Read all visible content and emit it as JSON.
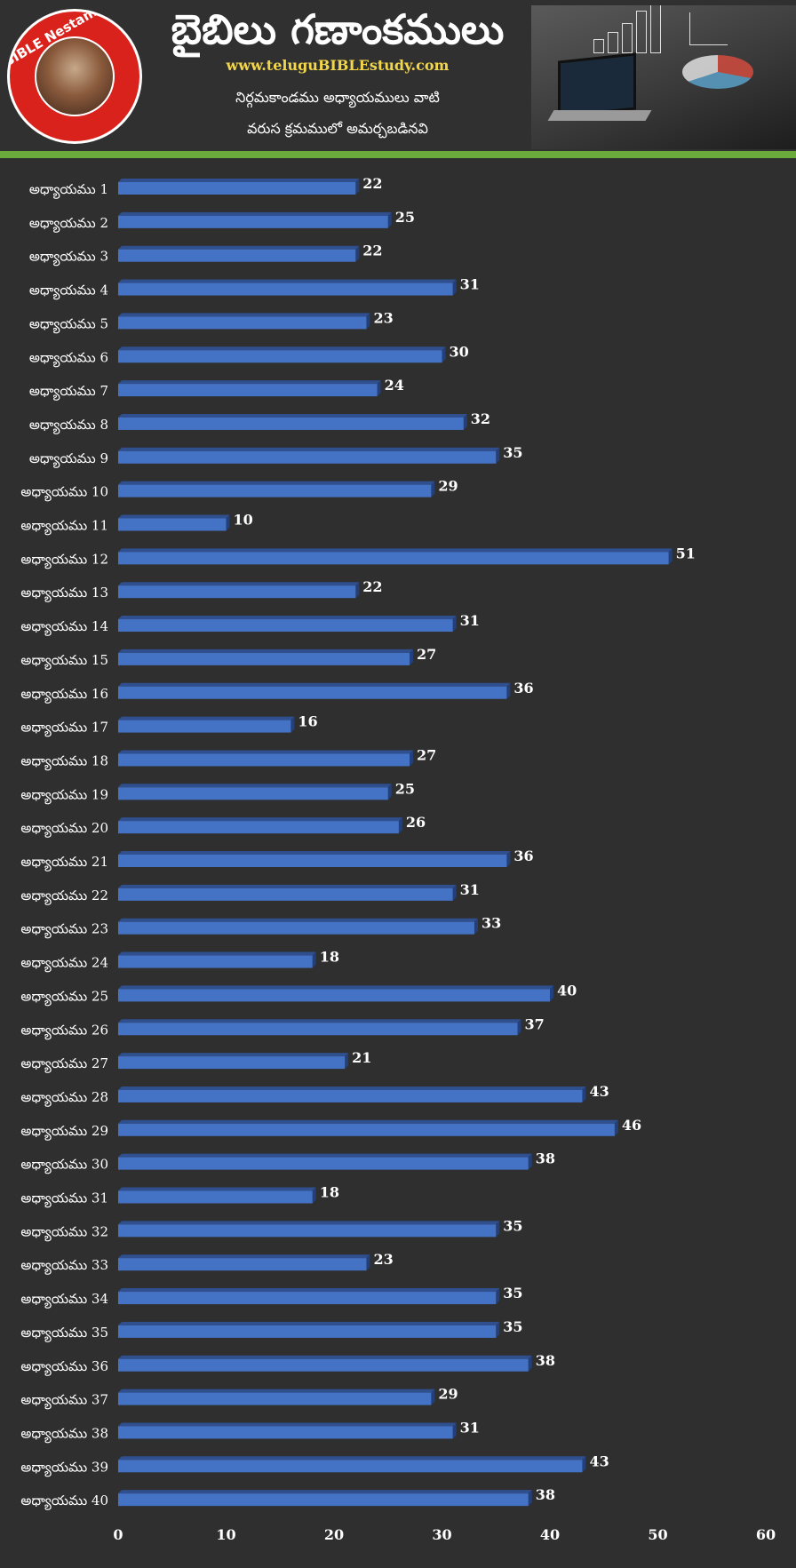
{
  "header": {
    "title": "బైబిలు గణాంకములు",
    "website": "www.teluguBIBLEstudy.com",
    "subtitle_line1": "నిర్గమకాండము అధ్యాయములు వాటి",
    "subtitle_line2": "వరుస క్రమములో అమర్చబడినవి",
    "logo_text": "BIBLE Nestam",
    "brand_green": "#6aab3c",
    "website_color": "#f2d64b"
  },
  "chart_data": {
    "type": "bar",
    "orientation": "horizontal",
    "categories": [
      "అధ్యాయము 1",
      "అధ్యాయము 2",
      "అధ్యాయము 3",
      "అధ్యాయము 4",
      "అధ్యాయము 5",
      "అధ్యాయము 6",
      "అధ్యాయము 7",
      "అధ్యాయము 8",
      "అధ్యాయము 9",
      "అధ్యాయము 10",
      "అధ్యాయము 11",
      "అధ్యాయము 12",
      "అధ్యాయము 13",
      "అధ్యాయము 14",
      "అధ్యాయము 15",
      "అధ్యాయము 16",
      "అధ్యాయము 17",
      "అధ్యాయము 18",
      "అధ్యాయము 19",
      "అధ్యాయము 20",
      "అధ్యాయము 21",
      "అధ్యాయము 22",
      "అధ్యాయము 23",
      "అధ్యాయము 24",
      "అధ్యాయము 25",
      "అధ్యాయము 26",
      "అధ్యాయము 27",
      "అధ్యాయము 28",
      "అధ్యాయము 29",
      "అధ్యాయము 30",
      "అధ్యాయము 31",
      "అధ్యాయము 32",
      "అధ్యాయము 33",
      "అధ్యాయము 34",
      "అధ్యాయము 35",
      "అధ్యాయము 36",
      "అధ్యాయము 37",
      "అధ్యాయము 38",
      "అధ్యాయము 39",
      "అధ్యాయము 40"
    ],
    "values": [
      22,
      25,
      22,
      31,
      23,
      30,
      24,
      32,
      35,
      29,
      10,
      51,
      22,
      31,
      27,
      36,
      16,
      27,
      25,
      26,
      36,
      31,
      33,
      18,
      40,
      37,
      21,
      43,
      46,
      38,
      18,
      35,
      23,
      35,
      35,
      38,
      29,
      31,
      43,
      38
    ],
    "xlim": [
      0,
      60
    ],
    "xticks": [
      0,
      10,
      20,
      30,
      40,
      50,
      60
    ],
    "bar_color": "#4472c4",
    "bar_top_color": "#2f4f8f",
    "grid": false,
    "legend": "none",
    "data_labels": true
  }
}
